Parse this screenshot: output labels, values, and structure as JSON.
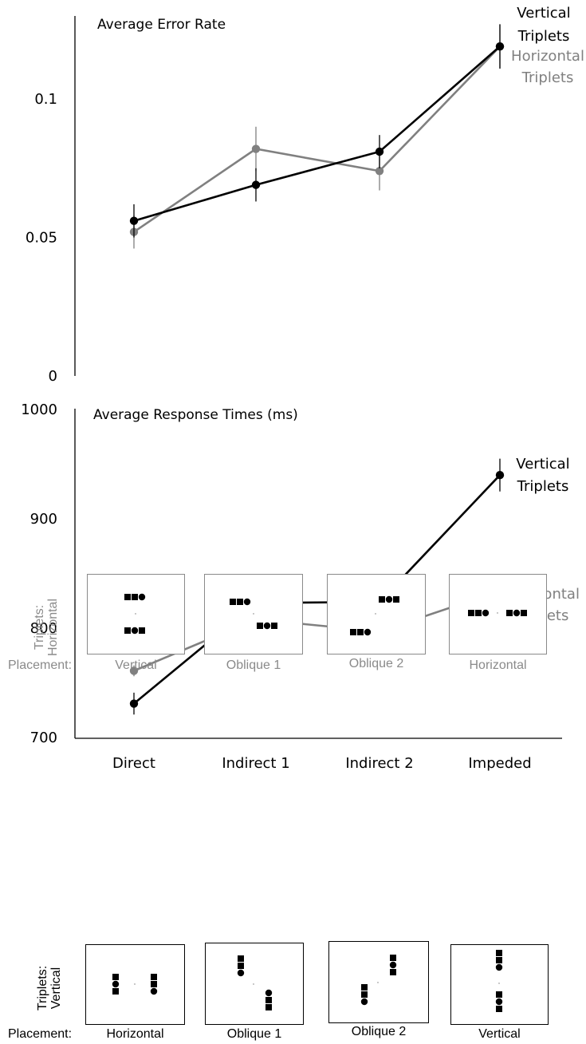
{
  "chart_data": [
    {
      "type": "line",
      "title": "Average Error Rate",
      "categories": [
        "Direct",
        "Indirect 1",
        "Indirect 2",
        "Impeded"
      ],
      "ylim": [
        0,
        0.13
      ],
      "yticks": [
        "0",
        "0.05",
        "0.1"
      ],
      "ytick_values": [
        0,
        0.05,
        0.1
      ],
      "series": [
        {
          "name_lines": [
            "Vertical",
            "Triplets"
          ],
          "color": "#000000",
          "values": [
            0.056,
            0.069,
            0.081,
            0.119
          ],
          "err": [
            0.006,
            0.006,
            0.006,
            0.008
          ]
        },
        {
          "name_lines": [
            "Horizontal",
            "Triplets"
          ],
          "color": "#808080",
          "values": [
            0.052,
            0.082,
            0.074,
            0.119
          ],
          "err": [
            0.006,
            0.008,
            0.007,
            0.008
          ]
        }
      ]
    },
    {
      "type": "line",
      "title": "Average Response Times (ms)",
      "categories": [
        "Direct",
        "Indirect 1",
        "Indirect 2",
        "Impeded"
      ],
      "ylim": [
        700,
        1000
      ],
      "yticks": [
        "700",
        "800",
        "900",
        "1000"
      ],
      "ytick_values": [
        700,
        800,
        900,
        1000
      ],
      "series": [
        {
          "name_lines": [
            "Vertical",
            "Triplets"
          ],
          "color": "#000000",
          "values": [
            731,
            823,
            824,
            940
          ],
          "err": [
            10,
            6,
            8,
            15
          ]
        },
        {
          "name_lines": [
            "Horizontal",
            "Triplets"
          ],
          "color": "#808080",
          "values": [
            761,
            808,
            797,
            834
          ],
          "err": [
            5,
            4,
            4,
            7
          ]
        }
      ]
    }
  ],
  "stimuli": {
    "horizontal_row": {
      "label_lines": [
        "Triplets:",
        "Horizontal"
      ],
      "placement_label": "Placement:",
      "captions": [
        "Vertical",
        "Oblique 1",
        "Oblique 2",
        "Horizontal"
      ]
    },
    "vertical_row": {
      "label_lines": [
        "Triplets:",
        "Vertical"
      ],
      "placement_label": "Placement:",
      "captions": [
        "Horizontal",
        "Oblique 1",
        "Oblique 2",
        "Vertical"
      ]
    }
  }
}
